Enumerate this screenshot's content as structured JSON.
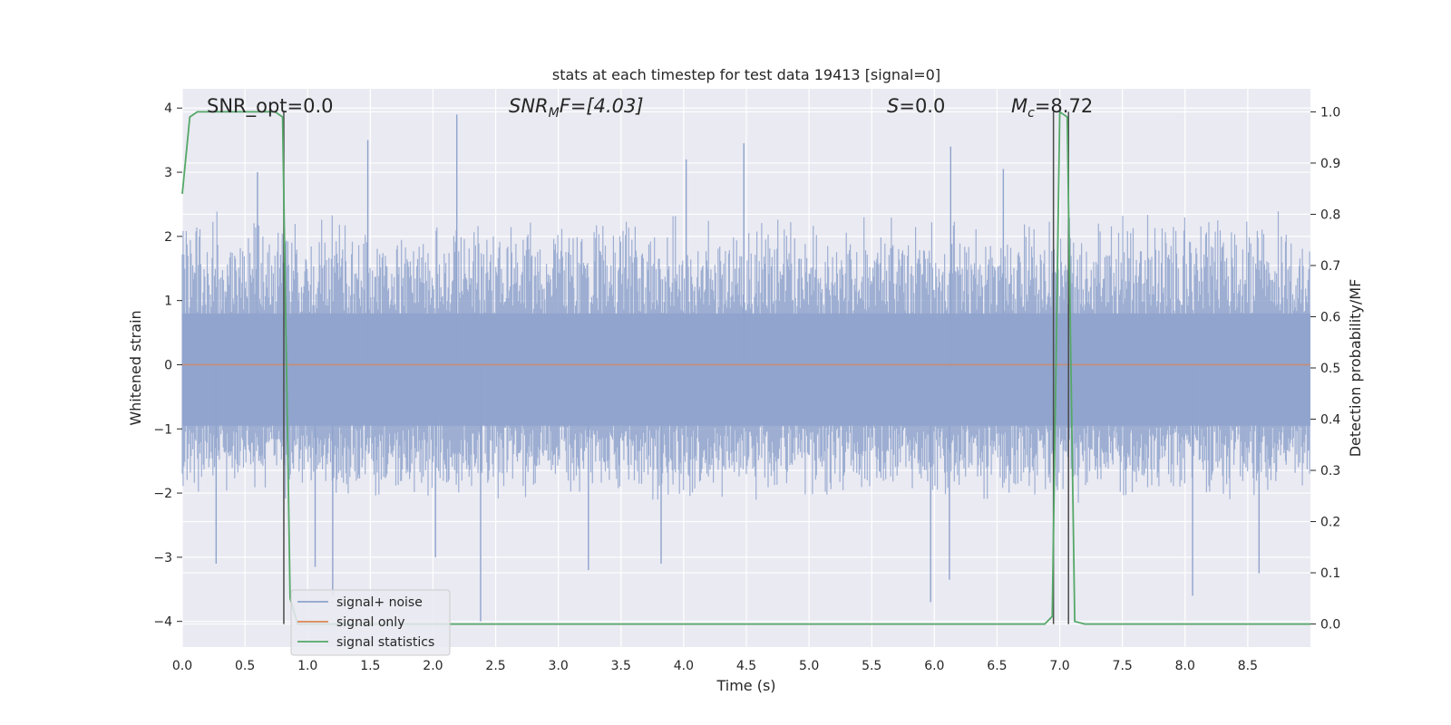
{
  "chart_data": {
    "type": "line",
    "title": "stats at each timestep for test data 19413 [signal=0]",
    "xlabel": "Time (s)",
    "ylabel": "Whitened strain",
    "y2label": "Detection probability/MF",
    "xlim": [
      0,
      9
    ],
    "ylim": [
      -4.4,
      4.3
    ],
    "y2lim": [
      -0.045,
      1.045
    ],
    "xticks": [
      0.0,
      0.5,
      1.0,
      1.5,
      2.0,
      2.5,
      3.0,
      3.5,
      4.0,
      4.5,
      5.0,
      5.5,
      6.0,
      6.5,
      7.0,
      7.5,
      8.0,
      8.5
    ],
    "yticks": [
      -4,
      -3,
      -2,
      -1,
      0,
      1,
      2,
      3,
      4
    ],
    "y2ticks": [
      0.0,
      0.1,
      0.2,
      0.3,
      0.4,
      0.5,
      0.6,
      0.7,
      0.8,
      0.9,
      1.0
    ],
    "grid": true,
    "legend_location": "lower-left",
    "annotations": {
      "snr_opt": "SNR_opt=0.0",
      "snr_mf_prefix": "SNR",
      "snr_mf_sub": "M",
      "snr_mf_suffix": "F=[4.03]",
      "s_italic": "S",
      "s_value": "=0.0",
      "mc_italic": "M",
      "mc_sub": "c",
      "mc_value": "=8.72"
    },
    "series": [
      {
        "name": "signal+ noise",
        "color": "#8fa3cc",
        "kind": "noise",
        "envelope": [
          -2.0,
          2.2
        ],
        "spikes": [
          {
            "x": 1.48,
            "y": 3.5
          },
          {
            "x": 2.19,
            "y": 3.9
          },
          {
            "x": 1.2,
            "y": -3.6
          },
          {
            "x": 2.38,
            "y": -4.0
          },
          {
            "x": 5.97,
            "y": -3.7
          },
          {
            "x": 6.12,
            "y": -3.35
          },
          {
            "x": 6.13,
            "y": 3.4
          },
          {
            "x": 4.48,
            "y": 3.45
          },
          {
            "x": 4.02,
            "y": 3.2
          },
          {
            "x": 0.27,
            "y": -3.1
          },
          {
            "x": 3.24,
            "y": -3.2
          },
          {
            "x": 3.82,
            "y": -3.1
          },
          {
            "x": 8.06,
            "y": -3.6
          },
          {
            "x": 8.59,
            "y": -3.25
          },
          {
            "x": 1.06,
            "y": -3.15
          },
          {
            "x": 0.6,
            "y": 3.0
          },
          {
            "x": 2.02,
            "y": -3.0
          },
          {
            "x": 6.55,
            "y": 3.05
          }
        ]
      },
      {
        "name": "signal only",
        "color": "#dd8452",
        "x": [
          0,
          9
        ],
        "y": [
          0,
          0
        ]
      },
      {
        "name": "signal statistics",
        "color": "#55a868",
        "axis": "right",
        "x": [
          0.0,
          0.06,
          0.12,
          0.5,
          0.74,
          0.8,
          0.86,
          0.92,
          1.0,
          2.0,
          4.0,
          6.0,
          6.88,
          6.94,
          7.0,
          7.06,
          7.12,
          7.2,
          8.0,
          9.0
        ],
        "y": [
          0.84,
          0.99,
          1.0,
          1.0,
          1.0,
          0.99,
          0.05,
          0.0,
          0.0,
          0.0,
          0.0,
          0.0,
          0.0,
          0.015,
          1.0,
          0.99,
          0.005,
          0.0,
          0.0,
          0.0
        ]
      }
    ],
    "vlines": [
      0.81,
      6.95,
      7.07
    ]
  }
}
